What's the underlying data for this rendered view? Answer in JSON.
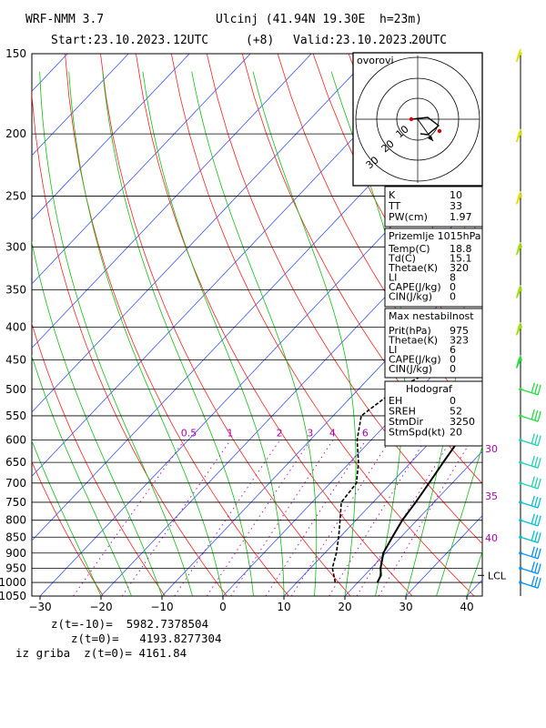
{
  "header": {
    "model": "WRF-NMM 3.7",
    "location": "Ulcinj (41.94N 19.30E  h=23m)",
    "start_label": "Start:23.10.2023.",
    "start_hour": "12UTC",
    "lead": "(+8)",
    "valid_label": "Valid:23.10.2023.",
    "valid_hour": "20UTC"
  },
  "chart_data": {
    "type": "line",
    "title": "",
    "xlabel": "",
    "ylabel": "",
    "temperature_ticks": [
      -30,
      -20,
      -10,
      0,
      10,
      20,
      30,
      40
    ],
    "pressure_levels": [
      150,
      200,
      250,
      300,
      350,
      400,
      450,
      500,
      550,
      600,
      650,
      700,
      750,
      800,
      850,
      900,
      950,
      1000,
      1050
    ],
    "xlim": [
      -30,
      42
    ],
    "ylim": [
      1050,
      150
    ],
    "mixing_ratio_labels": [
      "0.5",
      "1",
      "2",
      "3",
      "4",
      "6",
      "8"
    ],
    "series": [
      {
        "name": "",
        "color": "#000000",
        "style": "solid",
        "points": [
          [
            1000,
            23.2
          ],
          [
            975,
            22.7
          ],
          [
            950,
            21.5
          ],
          [
            900,
            19.6
          ],
          [
            850,
            18.6
          ],
          [
            800,
            17.6
          ],
          [
            750,
            17.0
          ],
          [
            700,
            16.2
          ],
          [
            650,
            15.3
          ],
          [
            600,
            14.4
          ],
          [
            550,
            13.1
          ],
          [
            500,
            11.6
          ],
          [
            450,
            10.2
          ],
          [
            400,
            8.9
          ],
          [
            350,
            7.4
          ],
          [
            300,
            6.0
          ],
          [
            250,
            4.9
          ],
          [
            200,
            3.8
          ],
          [
            150,
            6.2
          ]
        ]
      },
      {
        "name": "",
        "color": "#000000",
        "style": "dashed",
        "points": [
          [
            1000,
            16.3
          ],
          [
            950,
            13.6
          ],
          [
            900,
            11.9
          ],
          [
            850,
            9.8
          ],
          [
            800,
            7.4
          ],
          [
            750,
            4.8
          ],
          [
            700,
            4.3
          ],
          [
            650,
            1.4
          ],
          [
            600,
            -2.3
          ],
          [
            550,
            -5.4
          ],
          [
            500,
            -3.8
          ],
          [
            450,
            0.8
          ],
          [
            400,
            4.6
          ],
          [
            350,
            5.7
          ],
          [
            300,
            6.4
          ],
          [
            250,
            7.5
          ],
          [
            200,
            -6.0
          ],
          [
            150,
            6.2
          ]
        ]
      }
    ]
  },
  "wind_barbs": {
    "color_scale": [
      "#e0e000",
      "#a0e000",
      "#20e040",
      "#20d0b0",
      "#00c0d0",
      "#0090ff"
    ],
    "speed_labels": [
      "30",
      "35",
      "40"
    ],
    "lcl_label": "LCL"
  },
  "hodograph": {
    "title": "ovorovi",
    "labels": [
      "30",
      "20",
      "10"
    ]
  },
  "indices": {
    "rows": [
      {
        "name": "K",
        "value": "10"
      },
      {
        "name": "TT",
        "value": "33"
      },
      {
        "name": "PW(cm)",
        "value": "1.97"
      }
    ]
  },
  "surface": {
    "title": "Prizemlje  1015hPa",
    "rows": [
      {
        "name": "Temp(C)",
        "value": "18.8"
      },
      {
        "name": "Td(C)",
        "value": "15.1"
      },
      {
        "name": "Thetae(K)",
        "value": "320"
      },
      {
        "name": "LI",
        "value": "8"
      },
      {
        "name": "CAPE(J/kg)",
        "value": "0"
      },
      {
        "name": "CIN(J/kg)",
        "value": "0"
      }
    ]
  },
  "max_instability": {
    "title": "Max nestabilnost",
    "rows": [
      {
        "name": "Prit(hPa)",
        "value": "975"
      },
      {
        "name": "Thetae(K)",
        "value": "323"
      },
      {
        "name": "LI",
        "value": "6"
      },
      {
        "name": "CAPE(J/kg)",
        "value": "0"
      },
      {
        "name": "CIN(J/kg)",
        "value": "0"
      }
    ]
  },
  "hodograf_box": {
    "title": "Hodograf",
    "rows": [
      {
        "name": "EH",
        "value": "0"
      },
      {
        "name": "SREH",
        "value": "52"
      },
      {
        "name": "StmDir",
        "value": "3250"
      },
      {
        "name": "StmSpd(kt)",
        "value": "20"
      }
    ]
  },
  "footer": {
    "line1": "z(t=-10)=  5982.7378504",
    "line2": "z(t=0)=   4193.8277304",
    "line3": "iz griba  z(t=0)= 4161.84"
  }
}
